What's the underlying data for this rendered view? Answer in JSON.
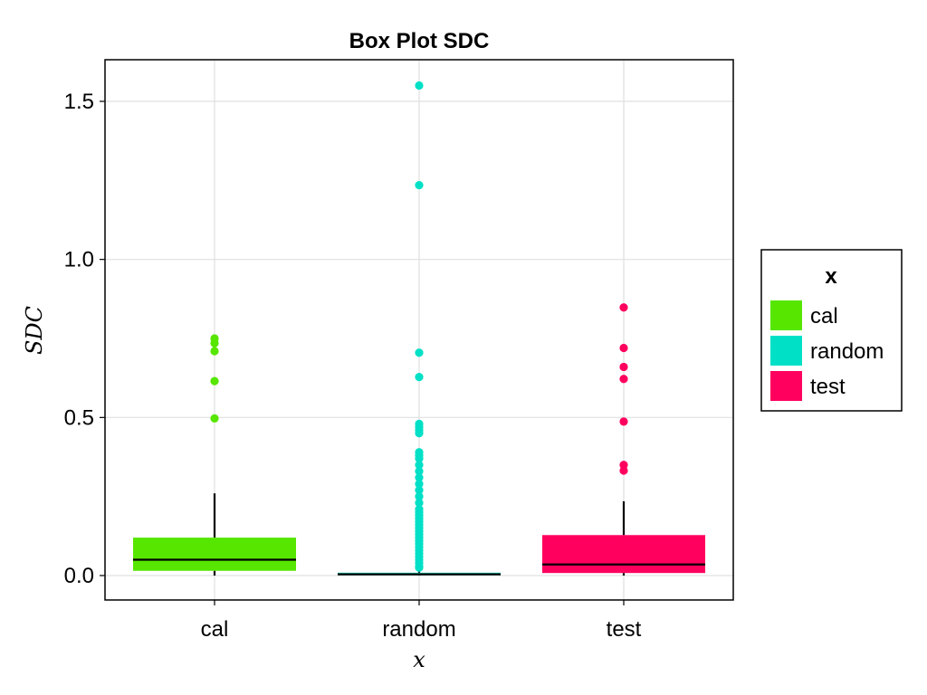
{
  "chart_data": {
    "type": "box",
    "title": "Box Plot SDC",
    "xlabel": "x",
    "ylabel": "SDC",
    "ylim": [
      -0.08,
      1.63
    ],
    "yticks": [
      0.0,
      0.5,
      1.0,
      1.5
    ],
    "ytick_labels": [
      "0.0",
      "0.5",
      "1.0",
      "1.5"
    ],
    "grid": true,
    "legend": {
      "title": "x",
      "position": "right"
    },
    "categories": [
      "cal",
      "random",
      "test"
    ],
    "series": [
      {
        "name": "cal",
        "color": "#56e600",
        "whisker_low": 0.0,
        "q1": 0.015,
        "median": 0.05,
        "q3": 0.12,
        "whisker_high": 0.26,
        "outliers": [
          0.75,
          0.735,
          0.71,
          0.615,
          0.497
        ]
      },
      {
        "name": "random",
        "color": "#00e0c6",
        "whisker_low": 0.0,
        "q1": 0.001,
        "median": 0.004,
        "q3": 0.009,
        "whisker_high": 0.02,
        "outliers": [
          1.55,
          1.235,
          0.705,
          0.628,
          0.48,
          0.47,
          0.46,
          0.45,
          0.39,
          0.38,
          0.37,
          0.35,
          0.33,
          0.31,
          0.29,
          0.27,
          0.25,
          0.23,
          0.21,
          0.2,
          0.19,
          0.18,
          0.17,
          0.16,
          0.15,
          0.14,
          0.13,
          0.12,
          0.11,
          0.1,
          0.09,
          0.08,
          0.07,
          0.06,
          0.05,
          0.04,
          0.03,
          0.025
        ]
      },
      {
        "name": "test",
        "color": "#ff005e",
        "whisker_low": 0.0,
        "q1": 0.008,
        "median": 0.035,
        "q3": 0.128,
        "whisker_high": 0.235,
        "outliers": [
          0.848,
          0.72,
          0.66,
          0.622,
          0.487,
          0.35,
          0.332
        ]
      }
    ]
  }
}
